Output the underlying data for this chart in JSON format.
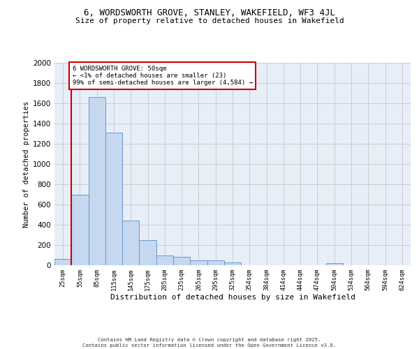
{
  "title_line1": "6, WORDSWORTH GROVE, STANLEY, WAKEFIELD, WF3 4JL",
  "title_line2": "Size of property relative to detached houses in Wakefield",
  "xlabel": "Distribution of detached houses by size in Wakefield",
  "ylabel": "Number of detached properties",
  "bar_color": "#c5d8f0",
  "bar_edge_color": "#6699cc",
  "categories": [
    "25sqm",
    "55sqm",
    "85sqm",
    "115sqm",
    "145sqm",
    "175sqm",
    "205sqm",
    "235sqm",
    "265sqm",
    "295sqm",
    "325sqm",
    "354sqm",
    "384sqm",
    "414sqm",
    "444sqm",
    "474sqm",
    "504sqm",
    "534sqm",
    "564sqm",
    "594sqm",
    "624sqm"
  ],
  "values": [
    65,
    700,
    1660,
    1310,
    440,
    250,
    95,
    85,
    50,
    50,
    30,
    0,
    0,
    0,
    0,
    0,
    20,
    0,
    0,
    0,
    0
  ],
  "subject_line_color": "#cc0000",
  "annotation_title": "6 WORDSWORTH GROVE: 50sqm",
  "annotation_line1": "← <1% of detached houses are smaller (23)",
  "annotation_line2": "99% of semi-detached houses are larger (4,584) →",
  "annotation_box_color": "#ffffff",
  "annotation_box_edge": "#cc0000",
  "ylim": [
    0,
    2000
  ],
  "yticks": [
    0,
    200,
    400,
    600,
    800,
    1000,
    1200,
    1400,
    1600,
    1800,
    2000
  ],
  "grid_color": "#cccccc",
  "plot_bg_color": "#e8eef8",
  "fig_bg_color": "#ffffff",
  "footer_line1": "Contains HM Land Registry data © Crown copyright and database right 2025.",
  "footer_line2": "Contains public sector information licensed under the Open Government Licence v3.0."
}
